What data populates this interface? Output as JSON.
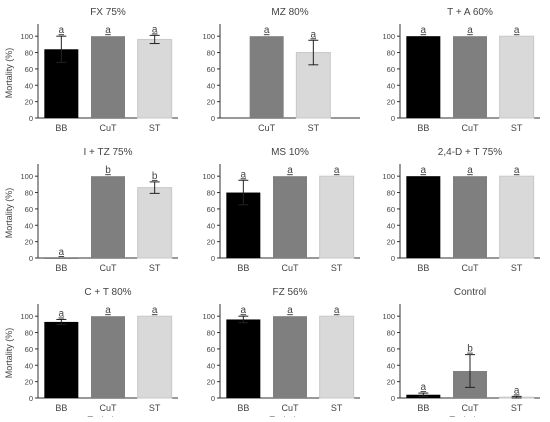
{
  "chart_data": [
    {
      "type": "bar",
      "title": "FX 75%",
      "categories": [
        "BB",
        "CuT",
        "ST"
      ],
      "values": [
        84,
        100,
        96
      ],
      "errors": [
        16,
        0,
        5
      ],
      "letters": [
        "a",
        "a",
        "a"
      ],
      "ylabel": "Mortality (%)",
      "xlabel": "",
      "yticks": [
        "0",
        "20",
        "40",
        "60",
        "80",
        "100"
      ],
      "ylim": [
        0,
        110
      ]
    },
    {
      "type": "bar",
      "title": "MZ 80%",
      "categories": [
        "CuT",
        "ST"
      ],
      "values": [
        100,
        80
      ],
      "errors": [
        0,
        15
      ],
      "letters": [
        "a",
        "a"
      ],
      "ylabel": "",
      "xlabel": "",
      "yticks": [
        "0",
        "20",
        "40",
        "60",
        "80",
        "100"
      ],
      "ylim": [
        0,
        110
      ]
    },
    {
      "type": "bar",
      "title": "T + A 60%",
      "categories": [
        "BB",
        "CuT",
        "ST"
      ],
      "values": [
        100,
        100,
        100
      ],
      "errors": [
        0,
        0,
        0
      ],
      "letters": [
        "a",
        "a",
        "a"
      ],
      "ylabel": "",
      "xlabel": "",
      "yticks": [
        "0",
        "20",
        "40",
        "60",
        "80",
        "100"
      ],
      "ylim": [
        0,
        110
      ]
    },
    {
      "type": "bar",
      "title": "I + TZ 75%",
      "categories": [
        "BB",
        "CuT",
        "ST"
      ],
      "values": [
        0,
        100,
        86
      ],
      "errors": [
        0,
        0,
        7
      ],
      "letters": [
        "a",
        "b",
        "b"
      ],
      "ylabel": "Mortality (%)",
      "xlabel": "",
      "yticks": [
        "0",
        "20",
        "40",
        "60",
        "80",
        "100"
      ],
      "ylim": [
        0,
        110
      ]
    },
    {
      "type": "bar",
      "title": "MS 10%",
      "categories": [
        "BB",
        "CuT",
        "ST"
      ],
      "values": [
        80,
        100,
        100
      ],
      "errors": [
        15,
        0,
        0
      ],
      "letters": [
        "a",
        "a",
        "a"
      ],
      "ylabel": "",
      "xlabel": "",
      "yticks": [
        "0",
        "20",
        "40",
        "60",
        "80",
        "100"
      ],
      "ylim": [
        0,
        110
      ]
    },
    {
      "type": "bar",
      "title": "2,4-D + T 75%",
      "categories": [
        "BB",
        "CuT",
        "ST"
      ],
      "values": [
        100,
        100,
        100
      ],
      "errors": [
        0,
        0,
        0
      ],
      "letters": [
        "a",
        "a",
        "a"
      ],
      "ylabel": "",
      "xlabel": "",
      "yticks": [
        "0",
        "20",
        "40",
        "60",
        "80",
        "100"
      ],
      "ylim": [
        0,
        110
      ]
    },
    {
      "type": "bar",
      "title": "C + T 80%",
      "categories": [
        "BB",
        "CuT",
        "ST"
      ],
      "values": [
        93,
        100,
        100
      ],
      "errors": [
        3,
        0,
        0
      ],
      "letters": [
        "a",
        "a",
        "a"
      ],
      "ylabel": "Mortality (%)",
      "xlabel": "Technique",
      "yticks": [
        "0",
        "20",
        "40",
        "60",
        "80",
        "100"
      ],
      "ylim": [
        0,
        110
      ]
    },
    {
      "type": "bar",
      "title": "FZ 56%",
      "categories": [
        "BB",
        "CuT",
        "ST"
      ],
      "values": [
        96,
        100,
        100
      ],
      "errors": [
        4,
        0,
        0
      ],
      "letters": [
        "a",
        "a",
        "a"
      ],
      "ylabel": "",
      "xlabel": "Technique",
      "yticks": [
        "0",
        "20",
        "40",
        "60",
        "80",
        "100"
      ],
      "ylim": [
        0,
        110
      ]
    },
    {
      "type": "bar",
      "title": "Control",
      "categories": [
        "BB",
        "CuT",
        "ST"
      ],
      "values": [
        4,
        33,
        1
      ],
      "errors": [
        2,
        20,
        1
      ],
      "letters": [
        "a",
        "b",
        "a"
      ],
      "ylabel": "",
      "xlabel": "Technique",
      "yticks": [
        "0",
        "20",
        "40",
        "60",
        "80",
        "100"
      ],
      "ylim": [
        0,
        110
      ]
    }
  ],
  "colors": {
    "BB": "#000000",
    "CuT": "#7f7f7f",
    "ST": "#d9d9d9",
    "axis": "#333333",
    "text": "#444444"
  }
}
